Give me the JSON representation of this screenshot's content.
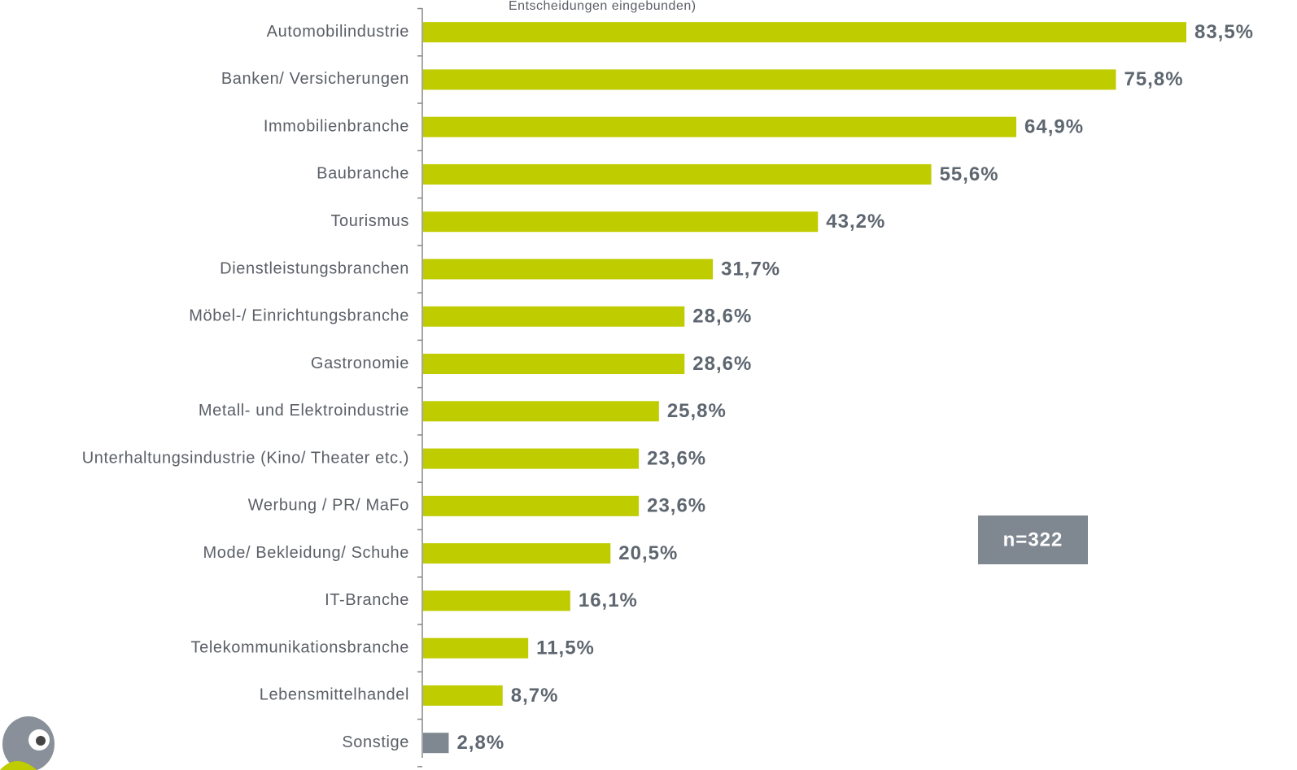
{
  "chart_data": {
    "type": "bar",
    "orientation": "horizontal",
    "subtitle": "Entscheidungen eingebunden)",
    "annotation": "n=322",
    "categories": [
      "Automobilindustrie",
      "Banken/ Versicherungen",
      "Immobilienbranche",
      "Baubranche",
      "Tourismus",
      "Dienstleistungsbranchen",
      "Möbel-/ Einrichtungsbranche",
      "Gastronomie",
      "Metall- und Elektroindustrie",
      "Unterhaltungsindustrie (Kino/ Theater etc.)",
      "Werbung / PR/ MaFo",
      "Mode/ Bekleidung/ Schuhe",
      "IT-Branche",
      "Telekommunikationsbranche",
      "Lebensmittelhandel",
      "Sonstige"
    ],
    "values": [
      83.5,
      75.8,
      64.9,
      55.6,
      43.2,
      31.7,
      28.6,
      28.6,
      25.8,
      23.6,
      23.6,
      20.5,
      16.1,
      11.5,
      8.7,
      2.8
    ],
    "value_labels": [
      "83,5%",
      "75,8%",
      "64,9%",
      "55,6%",
      "43,2%",
      "31,7%",
      "28,6%",
      "28,6%",
      "25,8%",
      "23,6%",
      "23,6%",
      "20,5%",
      "16,1%",
      "11,5%",
      "8,7%",
      "2,8%"
    ],
    "colors": [
      "#bfcc00",
      "#bfcc00",
      "#bfcc00",
      "#bfcc00",
      "#bfcc00",
      "#bfcc00",
      "#bfcc00",
      "#bfcc00",
      "#bfcc00",
      "#bfcc00",
      "#bfcc00",
      "#bfcc00",
      "#bfcc00",
      "#bfcc00",
      "#bfcc00",
      "#7f8790"
    ],
    "xlim": [
      0,
      90
    ]
  }
}
